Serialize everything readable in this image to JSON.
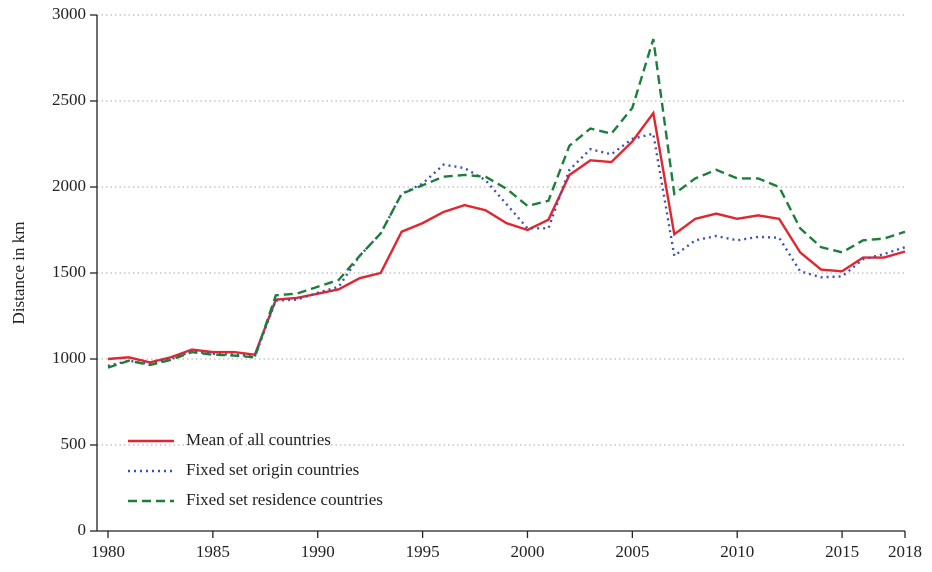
{
  "chart_data": {
    "type": "line",
    "ylabel": "Distance in km",
    "x": [
      1980,
      1981,
      1982,
      1983,
      1984,
      1985,
      1986,
      1987,
      1988,
      1989,
      1990,
      1991,
      1992,
      1993,
      1994,
      1995,
      1996,
      1997,
      1998,
      1999,
      2000,
      2001,
      2002,
      2003,
      2004,
      2005,
      2006,
      2007,
      2008,
      2009,
      2010,
      2011,
      2012,
      2013,
      2014,
      2015,
      2016,
      2017,
      2018
    ],
    "series": [
      {
        "name": "Mean of all countries",
        "color": "#e0262f",
        "style": "solid",
        "values": [
          1000,
          1010,
          980,
          1010,
          1055,
          1040,
          1040,
          1025,
          1345,
          1355,
          1380,
          1405,
          1470,
          1500,
          1740,
          1790,
          1855,
          1895,
          1865,
          1790,
          1750,
          1810,
          2070,
          2155,
          2145,
          2265,
          2430,
          1725,
          1815,
          1845,
          1815,
          1835,
          1815,
          1620,
          1520,
          1510,
          1590,
          1590,
          1625
        ]
      },
      {
        "name": "Fixed set origin countries",
        "color": "#3d52b0",
        "style": "dotted",
        "values": [
          960,
          990,
          970,
          1000,
          1045,
          1030,
          1025,
          1015,
          1340,
          1345,
          1385,
          1420,
          1600,
          1730,
          1960,
          2020,
          2130,
          2110,
          2040,
          1900,
          1760,
          1760,
          2100,
          2220,
          2190,
          2280,
          2310,
          1600,
          1690,
          1715,
          1690,
          1710,
          1705,
          1510,
          1475,
          1480,
          1580,
          1610,
          1650
        ]
      },
      {
        "name": "Fixed set residence countries",
        "color": "#1b7f3a",
        "style": "dashed",
        "values": [
          950,
          990,
          965,
          995,
          1040,
          1025,
          1020,
          1010,
          1370,
          1380,
          1420,
          1460,
          1600,
          1730,
          1960,
          2010,
          2060,
          2070,
          2060,
          1990,
          1890,
          1920,
          2240,
          2340,
          2310,
          2460,
          2860,
          1960,
          2050,
          2100,
          2050,
          2050,
          2000,
          1760,
          1650,
          1620,
          1690,
          1700,
          1740
        ]
      }
    ],
    "xlim": [
      1980,
      2018
    ],
    "xticks": [
      1980,
      1985,
      1990,
      1995,
      2000,
      2005,
      2010,
      2015,
      2018
    ],
    "ylim": [
      0,
      3000
    ],
    "yticks": [
      0,
      500,
      1000,
      1500,
      2000,
      2500,
      3000
    ],
    "grid": true,
    "legend": "lower left"
  }
}
